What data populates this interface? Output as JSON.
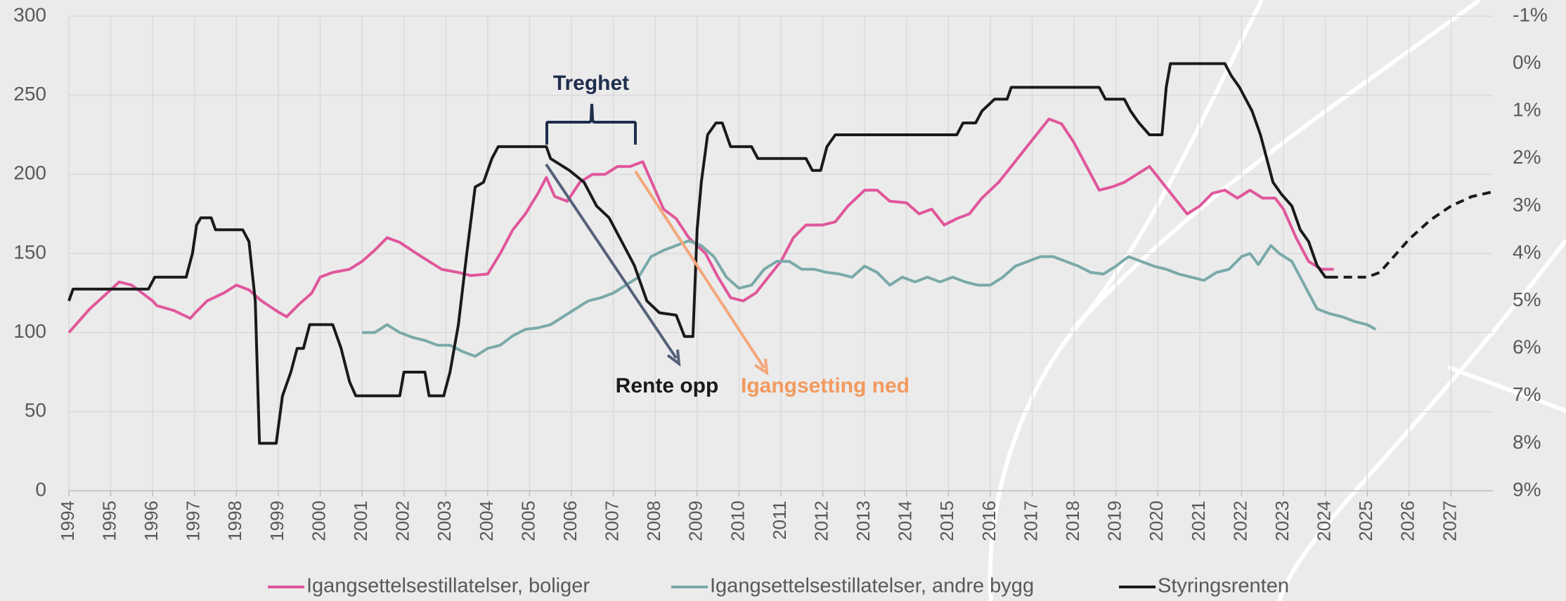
{
  "chart_data": {
    "type": "line",
    "xlim": [
      1994,
      2028
    ],
    "xticks": [
      1994,
      1995,
      1996,
      1997,
      1998,
      1999,
      2000,
      2001,
      2002,
      2003,
      2004,
      2005,
      2006,
      2007,
      2008,
      2009,
      2010,
      2011,
      2012,
      2013,
      2014,
      2015,
      2016,
      2017,
      2018,
      2019,
      2020,
      2021,
      2022,
      2023,
      2024,
      2025,
      2026,
      2027
    ],
    "ylim": [
      0,
      300
    ],
    "yticks": [
      0,
      50,
      100,
      150,
      200,
      250,
      300
    ],
    "y2lim": [
      9,
      -1
    ],
    "y2ticks": [
      {
        "value": -1,
        "label": "-1%"
      },
      {
        "value": 0,
        "label": "0%"
      },
      {
        "value": 1,
        "label": "1%"
      },
      {
        "value": 2,
        "label": "2%"
      },
      {
        "value": 3,
        "label": "3%"
      },
      {
        "value": 4,
        "label": "4%"
      },
      {
        "value": 5,
        "label": "5%"
      },
      {
        "value": 6,
        "label": "6%"
      },
      {
        "value": 7,
        "label": "7%"
      },
      {
        "value": 8,
        "label": "8%"
      },
      {
        "value": 9,
        "label": "9%"
      }
    ],
    "grid": true,
    "legend": "bottom",
    "series": [
      {
        "name": "Igangsettelsestillatelser, boliger",
        "color": "#e0569b",
        "x": [
          1994.0,
          1994.5,
          1995.0,
          1995.2,
          1995.5,
          1996.0,
          1996.1,
          1996.5,
          1996.9,
          1997.0,
          1997.3,
          1997.7,
          1998.0,
          1998.3,
          1998.6,
          1999.0,
          1999.2,
          1999.5,
          1999.8,
          2000.0,
          2000.3,
          2000.7,
          2001.0,
          2001.3,
          2001.6,
          2001.9,
          2002.3,
          2002.6,
          2002.9,
          2003.3,
          2003.6,
          2004.0,
          2004.3,
          2004.6,
          2004.9,
          2005.2,
          2005.4,
          2005.6,
          2005.9,
          2006.2,
          2006.5,
          2006.8,
          2007.1,
          2007.4,
          2007.7,
          2008.0,
          2008.2,
          2008.5,
          2008.8,
          2009.0,
          2009.2,
          2009.5,
          2009.8,
          2010.1,
          2010.4,
          2010.7,
          2011.0,
          2011.3,
          2011.6,
          2012.0,
          2012.3,
          2012.6,
          2013.0,
          2013.3,
          2013.6,
          2014.0,
          2014.3,
          2014.6,
          2014.9,
          2015.2,
          2015.5,
          2015.8,
          2016.2,
          2016.5,
          2016.8,
          2017.1,
          2017.4,
          2017.7,
          2018.0,
          2018.3,
          2018.6,
          2018.9,
          2019.2,
          2019.5,
          2019.8,
          2020.1,
          2020.4,
          2020.7,
          2021.0,
          2021.3,
          2021.6,
          2021.9,
          2022.2,
          2022.5,
          2022.8,
          2023.0,
          2023.3,
          2023.6,
          2023.9,
          2024.2
        ],
        "values": [
          100,
          115,
          127,
          132,
          130,
          120,
          117,
          114,
          109,
          112,
          120,
          125,
          130,
          127,
          120,
          113,
          110,
          118,
          125,
          135,
          138,
          140,
          145,
          152,
          160,
          157,
          150,
          145,
          140,
          138,
          136,
          137,
          150,
          165,
          175,
          188,
          198,
          186,
          183,
          195,
          200,
          200,
          205,
          205,
          208,
          190,
          178,
          172,
          160,
          155,
          150,
          135,
          122,
          120,
          125,
          135,
          145,
          160,
          168,
          168,
          170,
          180,
          190,
          190,
          183,
          182,
          175,
          178,
          168,
          172,
          175,
          185,
          195,
          205,
          215,
          225,
          235,
          232,
          220,
          205,
          190,
          192,
          195,
          200,
          205,
          195,
          185,
          175,
          180,
          188,
          190,
          185,
          190,
          185,
          185,
          178,
          160,
          145,
          140,
          140
        ]
      },
      {
        "name": "Igangsettelsestillatelser, andre bygg",
        "color": "#7aa9a9",
        "x": [
          2001.0,
          2001.3,
          2001.6,
          2001.9,
          2002.2,
          2002.5,
          2002.8,
          2003.1,
          2003.4,
          2003.7,
          2004.0,
          2004.3,
          2004.6,
          2004.9,
          2005.2,
          2005.5,
          2005.8,
          2006.1,
          2006.4,
          2006.7,
          2007.0,
          2007.3,
          2007.6,
          2007.9,
          2008.2,
          2008.5,
          2008.8,
          2009.1,
          2009.4,
          2009.7,
          2010.0,
          2010.3,
          2010.6,
          2010.9,
          2011.2,
          2011.5,
          2011.8,
          2012.1,
          2012.4,
          2012.7,
          2013.0,
          2013.3,
          2013.6,
          2013.9,
          2014.2,
          2014.5,
          2014.8,
          2015.1,
          2015.4,
          2015.7,
          2016.0,
          2016.3,
          2016.6,
          2016.9,
          2017.2,
          2017.5,
          2017.8,
          2018.1,
          2018.4,
          2018.7,
          2019.0,
          2019.3,
          2019.6,
          2019.9,
          2020.2,
          2020.5,
          2020.8,
          2021.1,
          2021.4,
          2021.7,
          2022.0,
          2022.2,
          2022.4,
          2022.7,
          2022.9,
          2023.2,
          2023.5,
          2023.8,
          2024.1,
          2024.4,
          2024.7,
          2025.0,
          2025.2
        ],
        "values": [
          100,
          100,
          105,
          100,
          97,
          95,
          92,
          92,
          88,
          85,
          90,
          92,
          98,
          102,
          103,
          105,
          110,
          115,
          120,
          122,
          125,
          130,
          135,
          148,
          152,
          155,
          158,
          155,
          148,
          135,
          128,
          130,
          140,
          145,
          145,
          140,
          140,
          138,
          137,
          135,
          142,
          138,
          130,
          135,
          132,
          135,
          132,
          135,
          132,
          130,
          130,
          135,
          142,
          145,
          148,
          148,
          145,
          142,
          138,
          137,
          142,
          148,
          145,
          142,
          140,
          137,
          135,
          133,
          138,
          140,
          148,
          150,
          143,
          155,
          150,
          145,
          130,
          115,
          112,
          110,
          107,
          105,
          102
        ]
      },
      {
        "name": "Styringsrenten",
        "color": "#1a1a1a",
        "axis": "y2",
        "x": [
          1994.0,
          1994.1,
          1995.9,
          1996.05,
          1996.8,
          1996.95,
          1997.05,
          1997.15,
          1997.4,
          1997.5,
          1998.15,
          1998.3,
          1998.45,
          1998.55,
          1998.95,
          1999.1,
          1999.3,
          1999.45,
          1999.6,
          1999.75,
          2000.3,
          2000.5,
          2000.7,
          2000.85,
          2001.9,
          2002.0,
          2002.5,
          2002.6,
          2002.95,
          2003.1,
          2003.3,
          2003.5,
          2003.7,
          2003.9,
          2004.1,
          2004.25,
          2005.4,
          2005.5,
          2005.95,
          2006.3,
          2006.6,
          2006.9,
          2007.2,
          2007.5,
          2007.8,
          2008.1,
          2008.5,
          2008.7,
          2008.9,
          2009.0,
          2009.1,
          2009.25,
          2009.45,
          2009.6,
          2009.8,
          2010.3,
          2010.45,
          2011.6,
          2011.75,
          2011.95,
          2012.1,
          2012.3,
          2015.2,
          2015.35,
          2015.65,
          2015.8,
          2016.1,
          2016.4,
          2016.5,
          2018.6,
          2018.75,
          2019.2,
          2019.35,
          2019.55,
          2019.8,
          2020.1,
          2020.2,
          2020.3,
          2021.6,
          2021.75,
          2021.95,
          2022.1,
          2022.25,
          2022.45,
          2022.6,
          2022.75,
          2022.95,
          2023.2,
          2023.4,
          2023.6,
          2023.8,
          2024.0,
          2024.1
        ],
        "values": [
          5.0,
          4.75,
          4.75,
          4.5,
          4.5,
          4.0,
          3.4,
          3.25,
          3.25,
          3.5,
          3.5,
          3.75,
          5.0,
          8.0,
          8.0,
          7.0,
          6.5,
          6.0,
          6.0,
          5.5,
          5.5,
          6.0,
          6.7,
          7.0,
          7.0,
          6.5,
          6.5,
          7.0,
          7.0,
          6.5,
          5.5,
          4.0,
          2.6,
          2.5,
          2.0,
          1.75,
          1.75,
          2.0,
          2.25,
          2.5,
          3.0,
          3.25,
          3.75,
          4.25,
          5.0,
          5.25,
          5.3,
          5.75,
          5.75,
          3.5,
          2.5,
          1.5,
          1.25,
          1.25,
          1.75,
          1.75,
          2.0,
          2.0,
          2.25,
          2.25,
          1.75,
          1.5,
          1.5,
          1.25,
          1.25,
          1.0,
          0.75,
          0.75,
          0.5,
          0.5,
          0.75,
          0.75,
          1.0,
          1.25,
          1.5,
          1.5,
          0.5,
          0.0,
          0.0,
          0.25,
          0.5,
          0.75,
          1.0,
          1.5,
          2.0,
          2.5,
          2.75,
          3.0,
          3.5,
          3.75,
          4.25,
          4.5,
          4.5
        ]
      }
    ],
    "projection": {
      "color": "#1a1a1a",
      "axis": "y2",
      "dashed": true,
      "x": [
        2024.1,
        2024.5,
        2025.0,
        2025.3,
        2025.6,
        2026.0,
        2026.5,
        2027.0,
        2027.5,
        2028.0
      ],
      "values": [
        4.5,
        4.5,
        4.5,
        4.4,
        4.1,
        3.7,
        3.3,
        3.0,
        2.8,
        2.7
      ]
    },
    "annotations": [
      {
        "text": "Treghet",
        "color": "#1f2d4d"
      },
      {
        "text": "Rente opp",
        "color": "#1a1a1a"
      },
      {
        "text": "Igangsetting ned",
        "color": "#f39a5e"
      }
    ]
  }
}
